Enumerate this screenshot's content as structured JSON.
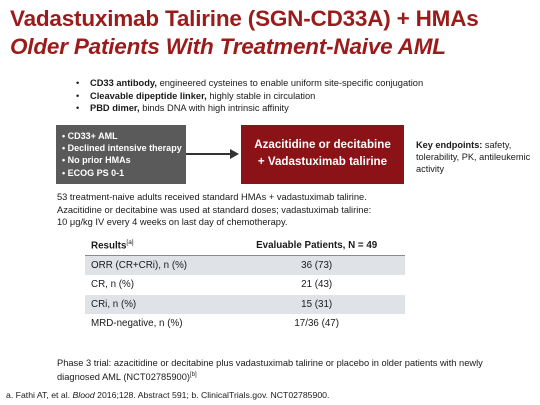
{
  "title": {
    "line1": "Vadastuximab Talirine (SGN-CD33A) + HMAs",
    "line2": "Older Patients With Treatment-Naive AML"
  },
  "bullets": [
    {
      "bold": "CD33 antibody,",
      "rest": " engineered cysteines to enable uniform site-specific conjugation"
    },
    {
      "bold": "Cleavable dipeptide linker,",
      "rest": " highly stable in circulation"
    },
    {
      "bold": "PBD dimer,",
      "rest": " binds DNA with high intrinsic affinity"
    }
  ],
  "criteria": [
    "CD33+ AML",
    "Declined intensive therapy",
    "No prior HMAs",
    "ECOG PS 0-1"
  ],
  "treatment": {
    "line1": "Azacitidine or decitabine",
    "line2": "+ Vadastuximab talirine"
  },
  "endpoints": {
    "label": "Key endpoints:",
    "text": " safety, tolerability, PK, antileukemic activity"
  },
  "description": [
    "53 treatment-naive adults received standard HMAs + vadastuximab talirine.",
    "Azacitidine or decitabine was used at standard doses; vadastuximab talirine:",
    "10 μg/kg IV every 4 weeks on last day of chemotherapy."
  ],
  "results": {
    "header_label": "Results",
    "header_sup": "[a]",
    "header_value": "Evaluable Patients, N = 49",
    "rows": [
      {
        "label": "ORR (CR+CRi), n (%)",
        "value": "36 (73)"
      },
      {
        "label": "CR, n (%)",
        "value": "21 (43)"
      },
      {
        "label": "CRi, n (%)",
        "value": "15 (31)"
      },
      {
        "label": "MRD-negative, n (%)",
        "value": "17/36 (47)"
      }
    ]
  },
  "phase3": {
    "text": "Phase 3 trial: azacitidine or decitabine plus vadastuximab talirine or placebo in older patients with newly diagnosed AML (NCT02785900)",
    "sup": "[b]"
  },
  "footnote": {
    "pre": "a. Fathi AT, et al. ",
    "journal": "Blood",
    "post": " 2016;128. Abstract 591; b. ClinicalTrials.gov. NCT02785900."
  }
}
